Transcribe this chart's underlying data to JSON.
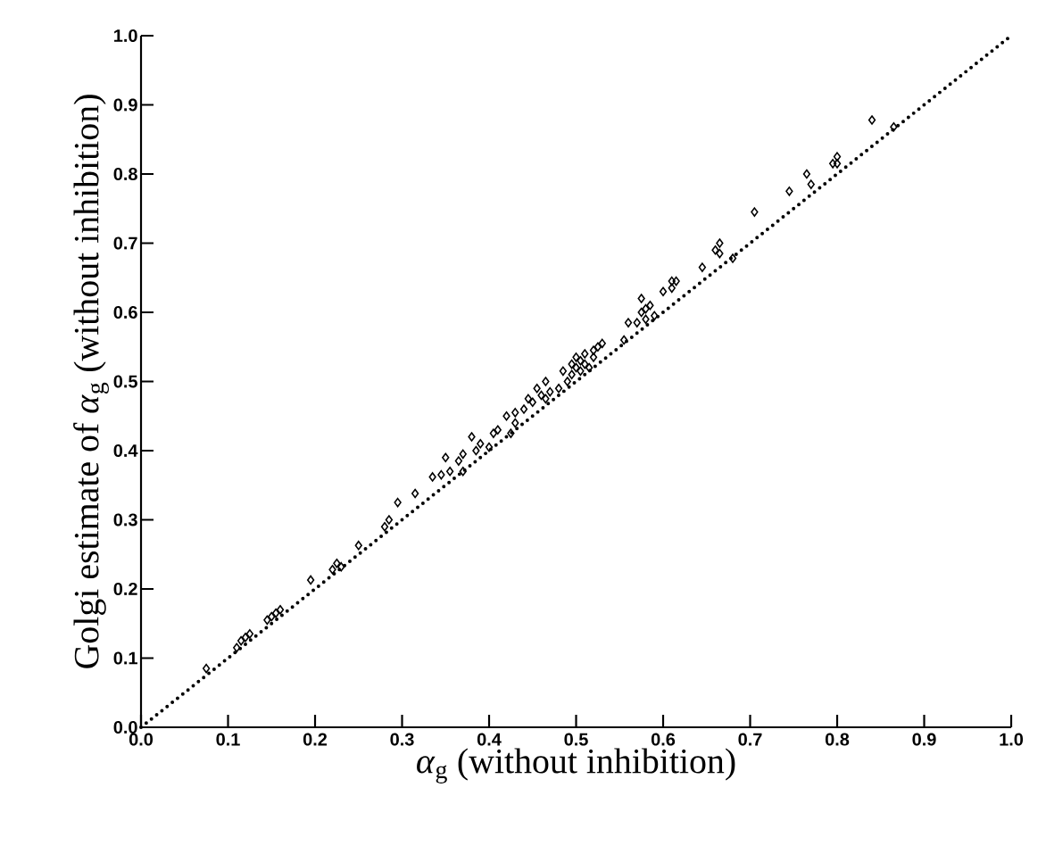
{
  "chart_data": {
    "type": "scatter",
    "xlabel": "*α*$_{g}$ (without inhibition)",
    "ylabel": "Golgi estimate of *α*$_{g}$ (without inhibition)",
    "xlim": [
      0,
      1
    ],
    "ylim": [
      0,
      1
    ],
    "xticks": [
      {
        "value": 0,
        "label": "0.0"
      },
      0.1,
      0.2,
      0.3,
      0.4,
      0.5,
      0.6,
      0.7,
      0.8,
      0.9,
      {
        "value": 1,
        "label": "1.0"
      }
    ],
    "yticks": [
      {
        "value": 0,
        "label": "0.0"
      },
      0.1,
      0.2,
      0.3,
      0.4,
      0.5,
      0.6,
      0.7,
      0.8,
      0.9,
      {
        "value": 1,
        "label": "1.0"
      }
    ],
    "grid": false,
    "marker": "diamond",
    "series": [
      {
        "type": "line",
        "color": "#000000",
        "line_style": "dotted",
        "marker": "none",
        "x": [
          0,
          1
        ],
        "values": [
          0,
          1
        ]
      },
      {
        "color": "#000000",
        "x": [
          0.075,
          0.11,
          0.115,
          0.12,
          0.125,
          0.145,
          0.15,
          0.155,
          0.16,
          0.195,
          0.22,
          0.225,
          0.23,
          0.25,
          0.28,
          0.285,
          0.295,
          0.315,
          0.335,
          0.345,
          0.35,
          0.355,
          0.365,
          0.37,
          0.37,
          0.38,
          0.385,
          0.39,
          0.4,
          0.405,
          0.41,
          0.42,
          0.425,
          0.43,
          0.43,
          0.44,
          0.445,
          0.45,
          0.455,
          0.46,
          0.465,
          0.465,
          0.47,
          0.48,
          0.485,
          0.49,
          0.495,
          0.495,
          0.5,
          0.5,
          0.505,
          0.505,
          0.51,
          0.51,
          0.515,
          0.52,
          0.52,
          0.525,
          0.53,
          0.555,
          0.56,
          0.57,
          0.575,
          0.575,
          0.58,
          0.58,
          0.585,
          0.59,
          0.6,
          0.61,
          0.61,
          0.615,
          0.645,
          0.66,
          0.665,
          0.665,
          0.68,
          0.705,
          0.745,
          0.765,
          0.77,
          0.795,
          0.8,
          0.8,
          0.84,
          0.865
        ],
        "values": [
          0.085,
          0.115,
          0.125,
          0.13,
          0.135,
          0.155,
          0.16,
          0.165,
          0.17,
          0.213,
          0.228,
          0.237,
          0.232,
          0.263,
          0.29,
          0.3,
          0.325,
          0.338,
          0.362,
          0.365,
          0.39,
          0.37,
          0.385,
          0.37,
          0.395,
          0.42,
          0.4,
          0.41,
          0.405,
          0.425,
          0.43,
          0.45,
          0.425,
          0.44,
          0.455,
          0.46,
          0.475,
          0.47,
          0.49,
          0.48,
          0.5,
          0.475,
          0.485,
          0.49,
          0.515,
          0.5,
          0.51,
          0.525,
          0.52,
          0.535,
          0.515,
          0.53,
          0.525,
          0.54,
          0.52,
          0.535,
          0.545,
          0.55,
          0.555,
          0.56,
          0.585,
          0.585,
          0.6,
          0.62,
          0.59,
          0.605,
          0.61,
          0.595,
          0.63,
          0.635,
          0.645,
          0.645,
          0.665,
          0.69,
          0.7,
          0.685,
          0.678,
          0.745,
          0.775,
          0.8,
          0.785,
          0.815,
          0.825,
          0.815,
          0.878,
          0.868
        ]
      }
    ]
  }
}
